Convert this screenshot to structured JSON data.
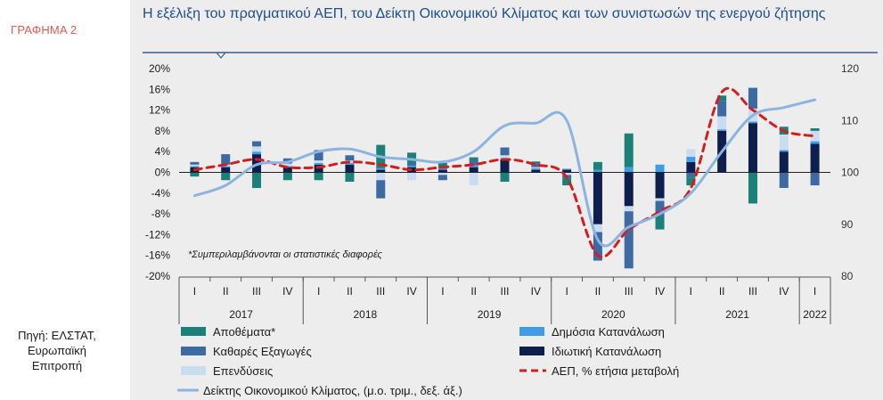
{
  "figure_label": "ΓΡΑΦΗΜΑ 2",
  "source_lines": [
    "Πηγή: ΕΛΣΤΑΤ,",
    "Ευρωπαϊκή",
    "Επιτροπή"
  ],
  "chart_data": {
    "type": "bar",
    "title": "Η εξέλιξη του πραγματικού ΑΕΠ, του Δείκτη Οικονομικού Κλίματος και των συνιστωσών της ενεργού ζήτησης",
    "note": "*Συμπεριλαμβάνονται οι στατιστικές διαφορές",
    "quarters": [
      "I",
      "II",
      "III",
      "IV",
      "I",
      "II",
      "III",
      "IV",
      "I",
      "II",
      "III",
      "IV",
      "I",
      "II",
      "III",
      "IV",
      "I",
      "II",
      "III",
      "IV",
      "I"
    ],
    "years": [
      {
        "label": "2017",
        "start": 0,
        "end": 3
      },
      {
        "label": "2018",
        "start": 4,
        "end": 7
      },
      {
        "label": "2019",
        "start": 8,
        "end": 11
      },
      {
        "label": "2020",
        "start": 12,
        "end": 15
      },
      {
        "label": "2021",
        "start": 16,
        "end": 19
      },
      {
        "label": "2022",
        "start": 20,
        "end": 20
      }
    ],
    "left_axis": {
      "min": -20,
      "max": 20,
      "step": 4,
      "tick_labels": [
        "20%",
        "16%",
        "12%",
        "8%",
        "4%",
        "0%",
        "-4%",
        "-8%",
        "-12%",
        "-16%",
        "-20%"
      ]
    },
    "right_axis": {
      "min": 80,
      "max": 120,
      "step": 10,
      "tick_labels": [
        "120",
        "110",
        "100",
        "90",
        "80"
      ]
    },
    "series": [
      {
        "name": "Ιδιωτική Κατανάλωση",
        "kind": "bar",
        "color": "#0f1f4d",
        "values": [
          1.0,
          1.0,
          3.5,
          1.0,
          1.5,
          1.5,
          0.5,
          1.0,
          0.5,
          1.0,
          2.5,
          0.5,
          0.5,
          -10.0,
          -6.5,
          -5.0,
          2.0,
          8.0,
          9.5,
          4.0,
          5.5
        ]
      },
      {
        "name": "Δημόσια Κατανάλωση",
        "kind": "bar",
        "color": "#3f9de8",
        "values": [
          0.2,
          0.2,
          0.5,
          0.2,
          0.3,
          0.3,
          0.3,
          0.3,
          0.3,
          0.4,
          0.3,
          0.3,
          0.2,
          0.5,
          1.0,
          1.5,
          1.0,
          0.3,
          0.3,
          0.3,
          0.5
        ]
      },
      {
        "name": "Επενδύσεις",
        "kind": "bar",
        "color": "#c9dcf0",
        "values": [
          0.3,
          0.3,
          1.0,
          0.5,
          0.5,
          0.5,
          -1.5,
          -1.5,
          -0.5,
          -2.5,
          0.5,
          0.2,
          -0.5,
          -1.5,
          -1.0,
          -0.5,
          1.5,
          2.5,
          2.5,
          3.0,
          2.0
        ]
      },
      {
        "name": "Καθαρές Εξαγωγές",
        "kind": "bar",
        "color": "#3d6aa3",
        "values": [
          0.5,
          2.0,
          1.0,
          1.0,
          2.0,
          1.0,
          -3.5,
          0.5,
          -1.0,
          1.0,
          1.5,
          0.8,
          -0.5,
          -5.5,
          -11.0,
          -3.0,
          -1.0,
          3.0,
          4.0,
          -3.0,
          -2.5
        ]
      },
      {
        "name": "Αποθέματα*",
        "kind": "bar",
        "color": "#1a8078",
        "values": [
          -0.8,
          -1.5,
          -3.0,
          -1.5,
          -1.5,
          -1.8,
          4.5,
          2.0,
          1.0,
          0.5,
          -1.8,
          0.3,
          -1.5,
          1.5,
          6.5,
          -2.5,
          -1.5,
          1.0,
          -6.0,
          1.5,
          0.5
        ]
      },
      {
        "name": "ΑΕΠ, % ετήσια μεταβολή",
        "kind": "line",
        "color": "#d41e1e",
        "dashed": true,
        "axis": "left",
        "values": [
          0.5,
          1.5,
          2.5,
          1.0,
          1.0,
          2.0,
          1.5,
          0.5,
          1.0,
          1.5,
          2.5,
          1.5,
          -1.0,
          -16.0,
          -11.0,
          -7.5,
          -3.0,
          15.5,
          12.0,
          8.0,
          7.0
        ]
      },
      {
        "name": "Δείκτης Οικονομικού Κλίματος, (μ.ο. τριμ., δεξ. άξ.)",
        "kind": "line",
        "color": "#8cb4e0",
        "axis": "right",
        "values": [
          95.5,
          97.5,
          101.5,
          102.0,
          104.0,
          104.5,
          103.0,
          102.5,
          102.0,
          104.0,
          109.0,
          109.5,
          110.0,
          87.0,
          89.5,
          92.0,
          96.0,
          104.0,
          111.0,
          112.5,
          114.0
        ]
      }
    ],
    "legend": [
      {
        "label": "Αποθέματα*",
        "color": "#1a8078",
        "shape": "rect"
      },
      {
        "label": "Δημόσια Κατανάλωση",
        "color": "#3f9de8",
        "shape": "rect"
      },
      {
        "label": "Καθαρές Εξαγωγές",
        "color": "#3d6aa3",
        "shape": "rect"
      },
      {
        "label": "Ιδιωτική Κατανάλωση",
        "color": "#0f1f4d",
        "shape": "rect"
      },
      {
        "label": "Επενδύσεις",
        "color": "#c9dcf0",
        "shape": "rect"
      },
      {
        "label": "ΑΕΠ, % ετήσια μεταβολή",
        "color": "#d41e1e",
        "shape": "dash"
      },
      {
        "label": "Δείκτης Οικονομικού Κλίματος, (μ.ο. τριμ., δεξ. άξ.)",
        "color": "#8cb4e0",
        "shape": "line"
      }
    ]
  }
}
